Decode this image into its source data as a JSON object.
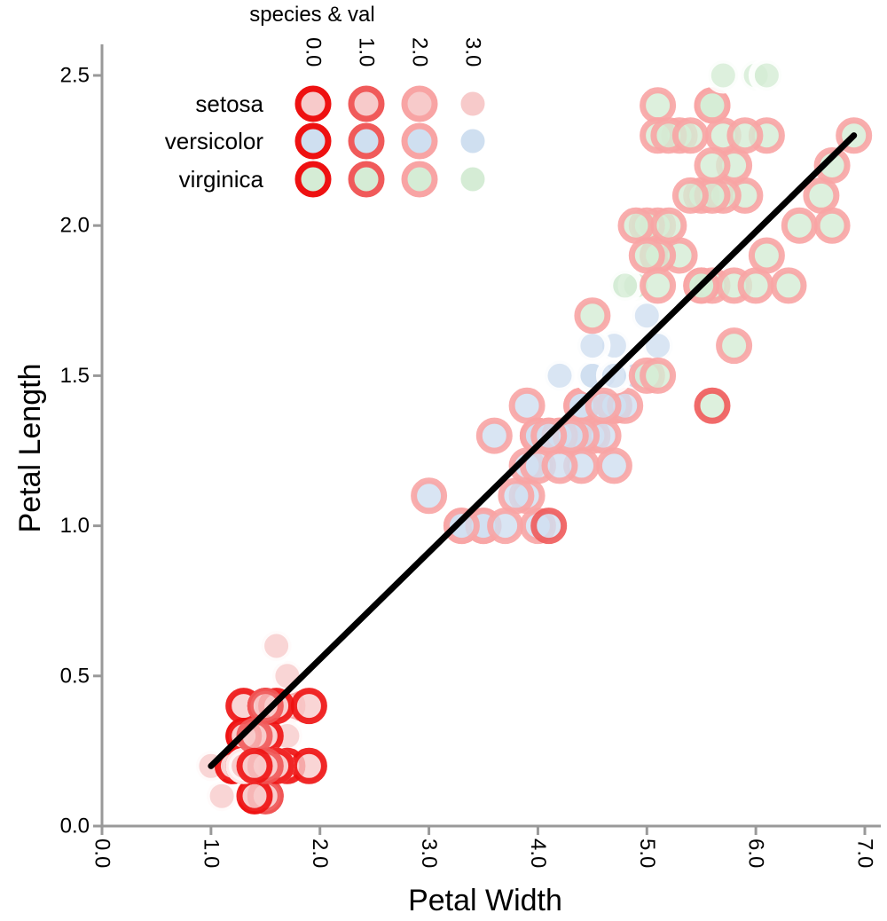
{
  "chart_data": {
    "type": "scatter",
    "title": "",
    "xlabel": "Petal Width",
    "ylabel": "Petal Length",
    "xlim": [
      0.0,
      7.2
    ],
    "ylim": [
      0.0,
      2.6
    ],
    "xticks": [
      "0.0",
      "1.0",
      "2.0",
      "3.0",
      "4.0",
      "5.0",
      "6.0",
      "7.0"
    ],
    "yticks": [
      "0.0",
      "0.5",
      "1.0",
      "1.5",
      "2.0",
      "2.5"
    ],
    "grid": false,
    "legend": {
      "title": "species & val",
      "placement": "top-left",
      "species": [
        "setosa",
        "versicolor",
        "virginica"
      ],
      "vals": [
        "0.0",
        "1.0",
        "2.0",
        "3.0"
      ]
    },
    "colors": {
      "setosa": "#f7caca",
      "versicolor": "#cfdff0",
      "virginica": "#d5ecd5",
      "val_0": "#ee1111",
      "val_1": "#f05a5a",
      "val_2": "#f8a4a4",
      "val_3": "#ffffff",
      "trend": "#000000",
      "axis": "#999999"
    },
    "trend_line": {
      "x": [
        1.0,
        6.9
      ],
      "y": [
        0.2,
        2.3
      ]
    },
    "series": [
      {
        "name": "setosa",
        "points": [
          [
            1.4,
            0.2,
            0
          ],
          [
            1.4,
            0.2,
            0
          ],
          [
            1.3,
            0.2,
            0
          ],
          [
            1.5,
            0.2,
            0
          ],
          [
            1.4,
            0.2,
            1
          ],
          [
            1.7,
            0.4,
            2
          ],
          [
            1.4,
            0.3,
            0
          ],
          [
            1.5,
            0.2,
            1
          ],
          [
            1.4,
            0.2,
            0
          ],
          [
            1.5,
            0.1,
            0
          ],
          [
            1.5,
            0.2,
            1
          ],
          [
            1.6,
            0.2,
            3
          ],
          [
            1.4,
            0.1,
            0
          ],
          [
            1.1,
            0.1,
            3
          ],
          [
            1.2,
            0.2,
            0
          ],
          [
            1.5,
            0.4,
            0
          ],
          [
            1.3,
            0.4,
            0
          ],
          [
            1.4,
            0.3,
            1
          ],
          [
            1.7,
            0.3,
            3
          ],
          [
            1.5,
            0.3,
            0
          ],
          [
            1.7,
            0.2,
            0
          ],
          [
            1.5,
            0.4,
            0
          ],
          [
            1.0,
            0.2,
            3
          ],
          [
            1.7,
            0.5,
            3
          ],
          [
            1.9,
            0.2,
            0
          ],
          [
            1.6,
            0.2,
            1
          ],
          [
            1.6,
            0.4,
            0
          ],
          [
            1.5,
            0.2,
            0
          ],
          [
            1.4,
            0.2,
            3
          ],
          [
            1.6,
            0.2,
            0
          ],
          [
            1.6,
            0.2,
            3
          ],
          [
            1.5,
            0.4,
            1
          ],
          [
            1.5,
            0.1,
            1
          ],
          [
            1.4,
            0.2,
            0
          ],
          [
            1.5,
            0.2,
            3
          ],
          [
            1.2,
            0.2,
            0
          ],
          [
            1.3,
            0.2,
            1
          ],
          [
            1.4,
            0.1,
            0
          ],
          [
            1.3,
            0.2,
            0
          ],
          [
            1.5,
            0.2,
            0
          ],
          [
            1.3,
            0.3,
            0
          ],
          [
            1.3,
            0.3,
            0
          ],
          [
            1.3,
            0.2,
            3
          ],
          [
            1.6,
            0.6,
            3
          ],
          [
            1.9,
            0.4,
            0
          ],
          [
            1.4,
            0.3,
            1
          ],
          [
            1.6,
            0.2,
            0
          ],
          [
            1.4,
            0.2,
            3
          ],
          [
            1.5,
            0.2,
            1
          ],
          [
            1.4,
            0.2,
            0
          ]
        ]
      },
      {
        "name": "versicolor",
        "points": [
          [
            4.7,
            1.4,
            2
          ],
          [
            4.5,
            1.5,
            3
          ],
          [
            4.9,
            1.5,
            3
          ],
          [
            4.0,
            1.3,
            2
          ],
          [
            4.6,
            1.5,
            3
          ],
          [
            4.5,
            1.3,
            2
          ],
          [
            4.7,
            1.6,
            3
          ],
          [
            3.3,
            1.0,
            2
          ],
          [
            4.6,
            1.3,
            2
          ],
          [
            3.9,
            1.4,
            2
          ],
          [
            3.5,
            1.0,
            2
          ],
          [
            4.2,
            1.5,
            3
          ],
          [
            4.0,
            1.0,
            2
          ],
          [
            4.7,
            1.4,
            2
          ],
          [
            3.6,
            1.3,
            2
          ],
          [
            4.4,
            1.4,
            2
          ],
          [
            4.5,
            1.5,
            3
          ],
          [
            4.1,
            1.0,
            1
          ],
          [
            4.5,
            1.5,
            3
          ],
          [
            3.9,
            1.1,
            2
          ],
          [
            4.8,
            1.8,
            3
          ],
          [
            4.0,
            1.3,
            2
          ],
          [
            4.9,
            1.5,
            3
          ],
          [
            4.7,
            1.2,
            2
          ],
          [
            4.3,
            1.3,
            2
          ],
          [
            4.4,
            1.4,
            2
          ],
          [
            4.8,
            1.4,
            2
          ],
          [
            5.0,
            1.7,
            3
          ],
          [
            4.5,
            1.5,
            3
          ],
          [
            3.5,
            1.0,
            2
          ],
          [
            3.8,
            1.1,
            2
          ],
          [
            3.7,
            1.0,
            2
          ],
          [
            3.9,
            1.2,
            2
          ],
          [
            5.1,
            1.6,
            3
          ],
          [
            4.5,
            1.5,
            3
          ],
          [
            4.5,
            1.6,
            3
          ],
          [
            4.7,
            1.5,
            3
          ],
          [
            4.4,
            1.3,
            2
          ],
          [
            4.1,
            1.3,
            2
          ],
          [
            4.0,
            1.3,
            2
          ],
          [
            4.4,
            1.2,
            2
          ],
          [
            4.6,
            1.4,
            2
          ],
          [
            4.0,
            1.2,
            2
          ],
          [
            3.3,
            1.0,
            2
          ],
          [
            4.2,
            1.3,
            2
          ],
          [
            4.2,
            1.2,
            2
          ],
          [
            4.2,
            1.3,
            2
          ],
          [
            4.3,
            1.3,
            2
          ],
          [
            3.0,
            1.1,
            2
          ],
          [
            4.1,
            1.3,
            2
          ]
        ]
      },
      {
        "name": "virginica",
        "points": [
          [
            6.0,
            2.5,
            3
          ],
          [
            5.1,
            1.9,
            2
          ],
          [
            5.9,
            2.1,
            2
          ],
          [
            5.6,
            1.8,
            2
          ],
          [
            5.8,
            2.2,
            2
          ],
          [
            6.6,
            2.1,
            2
          ],
          [
            4.5,
            1.7,
            2
          ],
          [
            6.3,
            1.8,
            2
          ],
          [
            5.8,
            1.8,
            2
          ],
          [
            6.1,
            2.5,
            3
          ],
          [
            5.1,
            2.0,
            2
          ],
          [
            5.3,
            1.9,
            2
          ],
          [
            5.5,
            2.1,
            2
          ],
          [
            5.0,
            2.0,
            2
          ],
          [
            5.1,
            2.4,
            2
          ],
          [
            5.3,
            2.3,
            2
          ],
          [
            5.5,
            1.8,
            2
          ],
          [
            6.7,
            2.2,
            2
          ],
          [
            6.9,
            2.3,
            2
          ],
          [
            5.0,
            1.5,
            2
          ],
          [
            5.7,
            2.3,
            2
          ],
          [
            4.9,
            2.0,
            2
          ],
          [
            6.7,
            2.0,
            2
          ],
          [
            4.9,
            1.8,
            3
          ],
          [
            5.7,
            2.1,
            2
          ],
          [
            6.0,
            1.8,
            2
          ],
          [
            4.8,
            1.8,
            3
          ],
          [
            4.9,
            1.8,
            3
          ],
          [
            5.6,
            2.1,
            2
          ],
          [
            5.8,
            1.6,
            2
          ],
          [
            6.1,
            1.9,
            2
          ],
          [
            6.4,
            2.0,
            2
          ],
          [
            5.6,
            2.2,
            2
          ],
          [
            5.1,
            1.5,
            2
          ],
          [
            5.6,
            1.4,
            1
          ],
          [
            6.1,
            2.3,
            2
          ],
          [
            5.6,
            2.4,
            2
          ],
          [
            5.5,
            1.8,
            2
          ],
          [
            4.8,
            1.8,
            3
          ],
          [
            5.4,
            2.1,
            2
          ],
          [
            5.6,
            2.4,
            2
          ],
          [
            5.1,
            2.3,
            2
          ],
          [
            5.1,
            1.9,
            2
          ],
          [
            5.9,
            2.3,
            2
          ],
          [
            5.7,
            2.5,
            3
          ],
          [
            5.2,
            2.3,
            2
          ],
          [
            5.0,
            1.9,
            2
          ],
          [
            5.2,
            2.0,
            2
          ],
          [
            5.4,
            2.3,
            2
          ],
          [
            5.1,
            1.8,
            2
          ]
        ]
      }
    ]
  }
}
